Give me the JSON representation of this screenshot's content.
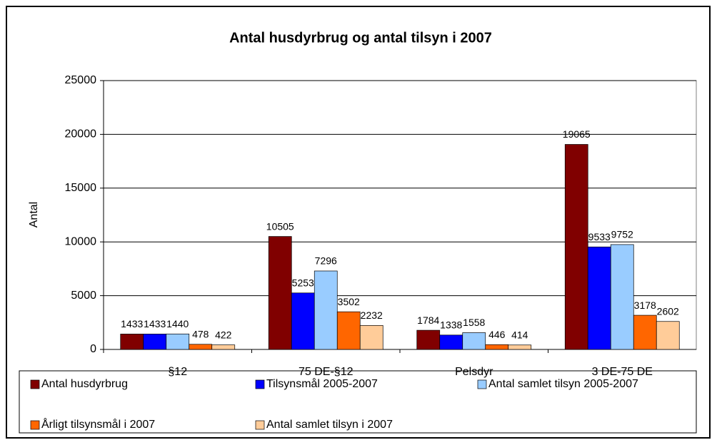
{
  "chart_data": {
    "type": "bar",
    "title": "Antal husdyrbrug og antal tilsyn i 2007",
    "y_label": "Antal",
    "categories": [
      "§12",
      "75 DE-§12",
      "Pelsdyr",
      "3 DE-75 DE"
    ],
    "series": [
      {
        "name": "Antal husdyrbrug",
        "color": "#800000",
        "values": [
          1433,
          10505,
          1784,
          19065
        ]
      },
      {
        "name": "Tilsynsmål 2005-2007",
        "color": "#0000FF",
        "values": [
          1433,
          5253,
          1338,
          9533
        ]
      },
      {
        "name": "Antal samlet tilsyn 2005-2007",
        "color": "#99CCFF",
        "values": [
          1440,
          7296,
          1558,
          9752
        ]
      },
      {
        "name": "Årligt tilsynsmål i 2007",
        "color": "#FF6600",
        "values": [
          478,
          3502,
          446,
          3178
        ]
      },
      {
        "name": "Antal samlet tilsyn i 2007",
        "color": "#FFCC99",
        "values": [
          422,
          2232,
          414,
          2602
        ]
      }
    ],
    "ylim": [
      0,
      25000
    ],
    "yticks": [
      0,
      5000,
      10000,
      15000,
      20000,
      25000
    ],
    "grid": true,
    "legend": "bottom"
  }
}
